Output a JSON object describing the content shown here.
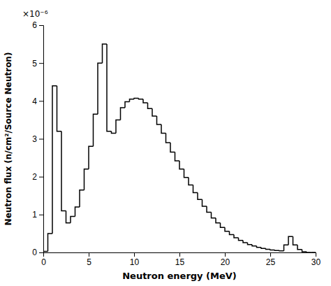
{
  "chart_data": {
    "type": "histogram",
    "xlabel": "Neutron energy (MeV)",
    "ylabel": "Neutron flux (n/cm²/Source Neutron)",
    "annotation": "×10⁻⁶",
    "color": "#000000",
    "bins": [
      0,
      0.5,
      1,
      1.5,
      2,
      2.5,
      3,
      3.5,
      4,
      4.5,
      5,
      5.5,
      6,
      6.5,
      7,
      7.5,
      8,
      8.5,
      9,
      9.5,
      10,
      10.5,
      11,
      11.5,
      12,
      12.5,
      13,
      13.5,
      14,
      14.5,
      15,
      15.5,
      16,
      16.5,
      17,
      17.5,
      18,
      18.5,
      19,
      19.5,
      20,
      20.5,
      21,
      21.5,
      22,
      22.5,
      23,
      23.5,
      24,
      24.5,
      25,
      25.5,
      26,
      26.5,
      27,
      27.5,
      28,
      28.5,
      29,
      29.5,
      30
    ],
    "values": [
      3e-08,
      5e-07,
      4.4e-06,
      3.2e-06,
      1.1e-06,
      7.8e-07,
      9.5e-07,
      1.2e-06,
      1.65e-06,
      2.2e-06,
      2.8e-06,
      3.65e-06,
      5e-06,
      5.5e-06,
      3.2e-06,
      3.15e-06,
      3.5e-06,
      3.82e-06,
      3.98e-06,
      4.05e-06,
      4.07e-06,
      4.05e-06,
      3.95e-06,
      3.8e-06,
      3.6e-06,
      3.38e-06,
      3.15e-06,
      2.9e-06,
      2.65e-06,
      2.42e-06,
      2.2e-06,
      1.98e-06,
      1.78e-06,
      1.58e-06,
      1.4e-06,
      1.22e-06,
      1.06e-06,
      9.1e-07,
      7.8e-07,
      6.6e-07,
      5.6e-07,
      4.7e-07,
      3.9e-07,
      3.2e-07,
      2.6e-07,
      2.1e-07,
      1.7e-07,
      1.35e-07,
      1.08e-07,
      8.5e-08,
      6.5e-08,
      5e-08,
      4e-08,
      2e-07,
      4.2e-07,
      2e-07,
      8e-08,
      2e-08,
      0,
      0
    ],
    "xlim": [
      0,
      30
    ],
    "ylim": [
      0,
      6e-06
    ],
    "xticks": [
      0,
      5,
      10,
      15,
      20,
      25,
      30
    ],
    "yticks": [
      0,
      {
        "value": 1e-06,
        "label": "1"
      },
      {
        "value": 2e-06,
        "label": "2"
      },
      {
        "value": 3e-06,
        "label": "3"
      },
      {
        "value": 4e-06,
        "label": "4"
      },
      {
        "value": 5e-06,
        "label": "5"
      },
      {
        "value": 6e-06,
        "label": "6"
      }
    ]
  }
}
